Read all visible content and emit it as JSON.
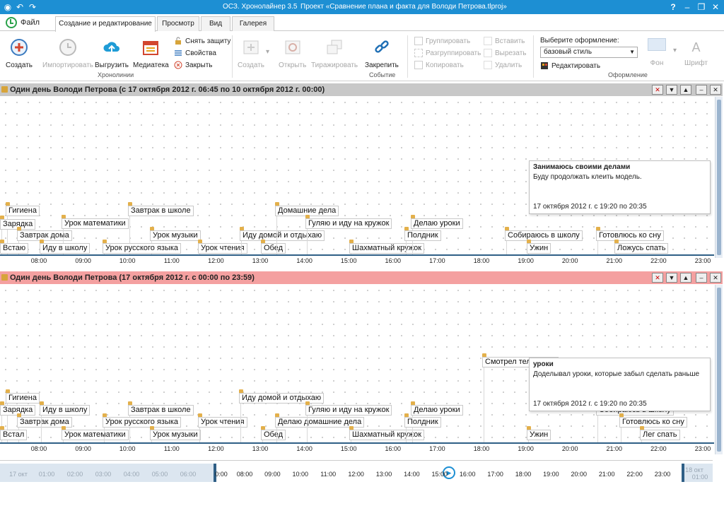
{
  "window": {
    "app_title": "ОСЗ. Хронолайнер 3.5",
    "project": "Проект «Сравнение плана и факта для Володи Петрова.tlproj»",
    "help": "?",
    "minimize": "–",
    "restore": "❐",
    "close": "✕"
  },
  "tabs": {
    "file": "Файл",
    "items": [
      "Создание и редактирование",
      "Просмотр",
      "Вид",
      "Галерея"
    ]
  },
  "ribbon": {
    "chronoline": {
      "label": "Хронолинии",
      "create": "Создать",
      "import": "Импортировать",
      "export": "Выгрузить",
      "media": "Медиатека",
      "unprotect": "Снять защиту",
      "properties": "Свойства",
      "close": "Закрыть"
    },
    "event": {
      "label": "Событие",
      "create": "Создать",
      "open": "Открыть",
      "replicate": "Тиражировать",
      "pin": "Закрепить",
      "group": "Группировать",
      "ungroup": "Разгруппировать",
      "copy": "Копировать",
      "insert": "Вставить",
      "cut": "Вырезать",
      "delete": "Удалить"
    },
    "design": {
      "label": "Оформление",
      "choose": "Выберите оформление:",
      "style": "базовый стиль",
      "edit": "Редактировать",
      "background": "Фон",
      "font": "Шрифт"
    }
  },
  "panel1": {
    "title": "Один день Володи Петрова (с 17 октября 2012 г. 06:45 по 10 октября 2012 г. 00:00)",
    "header_color": "#c8c8c8",
    "events": [
      {
        "label": "Гигиена"
      },
      {
        "label": "Зарядка"
      },
      {
        "label": "Завтрак дома"
      },
      {
        "label": "Встаю"
      },
      {
        "label": "Урок математики"
      },
      {
        "label": "Иду в школу"
      },
      {
        "label": "Завтрак в школе"
      },
      {
        "label": "Урок музыки"
      },
      {
        "label": "Урок русского языка"
      },
      {
        "label": "Урок чтения"
      },
      {
        "label": "Иду домой и отдыхаю"
      },
      {
        "label": "Обед"
      },
      {
        "label": "Домашние дела"
      },
      {
        "label": "Гуляю и иду на кружок"
      },
      {
        "label": "Шахматный кружок"
      },
      {
        "label": "Делаю уроки"
      },
      {
        "label": "Полдник"
      },
      {
        "label": "Собираюсь в школу"
      },
      {
        "label": "Ужин"
      },
      {
        "label": "Готовлюсь ко сну"
      },
      {
        "label": "Ложусь спать"
      }
    ],
    "callout": {
      "title": "Занимаюсь своими делами",
      "text": "Буду продолжать клеить модель.",
      "date": "17 октября 2012 г. с 19:20 по 20:35"
    },
    "ticks": [
      "08:00",
      "09:00",
      "10:00",
      "11:00",
      "12:00",
      "13:00",
      "14:00",
      "15:00",
      "16:00",
      "17:00",
      "18:00",
      "19:00",
      "20:00",
      "21:00",
      "22:00",
      "23:00"
    ]
  },
  "panel2": {
    "title": "Один день Володи Петрова (17 октября 2012 г. с 00:00 по 23:59)",
    "header_color": "#f4a0a0",
    "events": [
      {
        "label": "Гигиена"
      },
      {
        "label": "Зарядка"
      },
      {
        "label": "Завтрак дома"
      },
      {
        "label": "Встал"
      },
      {
        "label": "Иду в школу"
      },
      {
        "label": "Урок математики"
      },
      {
        "label": "Завтрак в школе"
      },
      {
        "label": "Урок русского языка"
      },
      {
        "label": "Урок музыки"
      },
      {
        "label": "Урок чтения"
      },
      {
        "label": "Иду домой и отдыхаю"
      },
      {
        "label": "Обед"
      },
      {
        "label": "Делаю домашние дела"
      },
      {
        "label": "Гуляю и иду на кружок"
      },
      {
        "label": "Шахматный кружок"
      },
      {
        "label": "Делаю уроки"
      },
      {
        "label": "Полдник"
      },
      {
        "label": "Смотрел телевизор"
      },
      {
        "label": "Ужин"
      },
      {
        "label": "Собираюсь в школу"
      },
      {
        "label": "Готовлюсь ко сну"
      },
      {
        "label": "Лег спать"
      }
    ],
    "callout": {
      "title": "уроки",
      "text": "Доделывал уроки, которые забыл сделать раньше",
      "date": "17 октября 2012 г. с 19:20 по 20:35"
    },
    "ticks": [
      "08:00",
      "09:00",
      "10:00",
      "11:00",
      "12:00",
      "13:00",
      "14:00",
      "15:00",
      "16:00",
      "17:00",
      "18:00",
      "19:00",
      "20:00",
      "21:00",
      "22:00",
      "23:00"
    ]
  },
  "overview": {
    "dim_ticks": [
      "17 окт",
      "01:00",
      "02:00",
      "03:00",
      "04:00",
      "05:00",
      "06:00"
    ],
    "ticks": [
      "0:00",
      "08:00",
      "09:00",
      "10:00",
      "11:00",
      "12:00",
      "13:00",
      "14:00",
      "15:00",
      "16:00",
      "17:00",
      "18:00",
      "19:00",
      "20:00",
      "21:00",
      "22:00",
      "23:00"
    ],
    "end": "18 окт",
    "end_time": "01:00"
  },
  "colors": {
    "titlebar": "#1d8fd3",
    "axis": "#2f5f86",
    "accent": "#e3b04b"
  }
}
